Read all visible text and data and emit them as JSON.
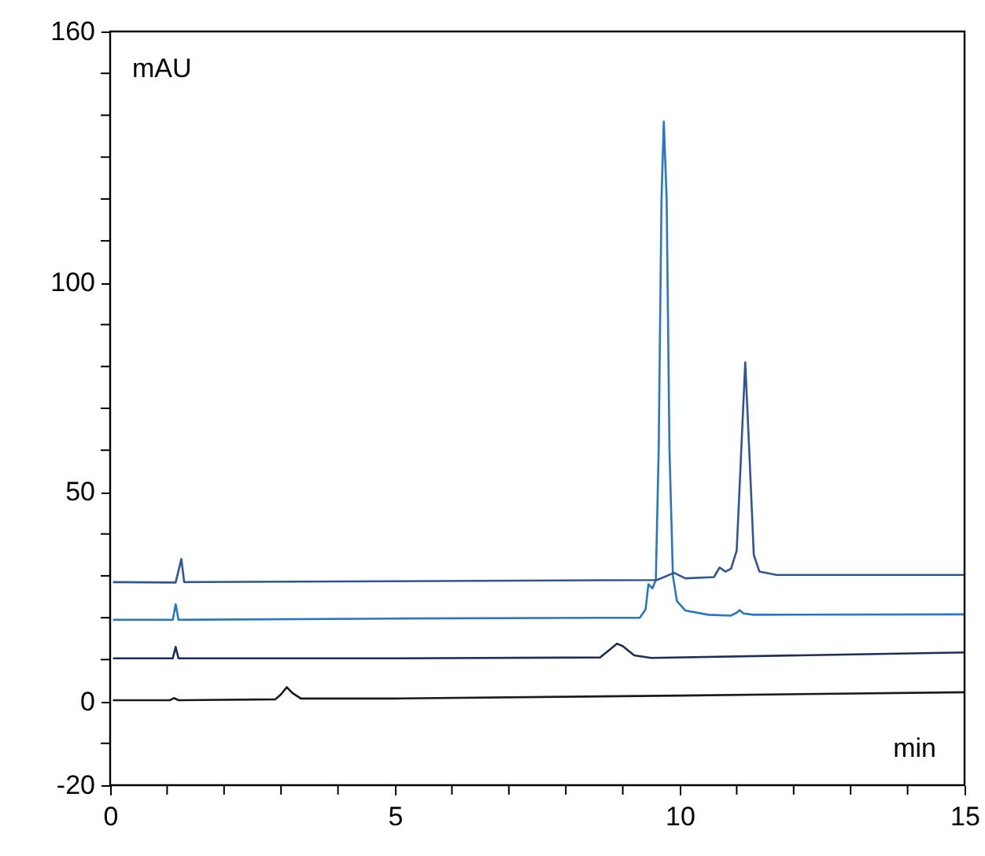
{
  "chart_data": {
    "type": "line",
    "xlabel": "min",
    "ylabel": "mAU",
    "xlim": [
      0,
      15
    ],
    "ylim": [
      -20,
      160
    ],
    "xticks": [
      0,
      {
        "value": 1,
        "label": null
      },
      {
        "value": 2,
        "label": null
      },
      {
        "value": 3,
        "label": null
      },
      {
        "value": 4,
        "label": null
      },
      5,
      {
        "value": 6,
        "label": null
      },
      {
        "value": 7,
        "label": null
      },
      {
        "value": 8,
        "label": null
      },
      {
        "value": 9,
        "label": null
      },
      10,
      {
        "value": 11,
        "label": null
      },
      {
        "value": 12,
        "label": null
      },
      {
        "value": 13,
        "label": null
      },
      {
        "value": 14,
        "label": null
      },
      15
    ],
    "yticks": [
      -20,
      {
        "value": -10,
        "label": null
      },
      0,
      {
        "value": 10,
        "label": null
      },
      {
        "value": 20,
        "label": null
      },
      {
        "value": 30,
        "label": null
      },
      {
        "value": 40,
        "label": null
      },
      50,
      {
        "value": 60,
        "label": null
      },
      {
        "value": 70,
        "label": null
      },
      {
        "value": 80,
        "label": null
      },
      {
        "value": 90,
        "label": null
      },
      100,
      {
        "value": 110,
        "label": null
      },
      {
        "value": 120,
        "label": null
      },
      {
        "value": 130,
        "label": null
      },
      {
        "value": 140,
        "label": null
      },
      {
        "value": 150,
        "label": null
      },
      160
    ],
    "grid": false,
    "marker": "none",
    "line_style": "solid",
    "series": [
      {
        "color": "#1a1a1a",
        "x": [
          0.05,
          1.05,
          1.12,
          1.2,
          2.9,
          3.0,
          3.1,
          3.2,
          3.35,
          5,
          10,
          15
        ],
        "values": [
          0.3,
          0.3,
          0.8,
          0.3,
          0.5,
          1.7,
          3.4,
          2,
          0.7,
          0.7,
          1.4,
          2.2
        ]
      },
      {
        "color": "#1f2d5a",
        "x": [
          0.05,
          1.1,
          1.15,
          1.2,
          5,
          8.6,
          8.8,
          8.9,
          9.0,
          9.2,
          9.5,
          15
        ],
        "values": [
          10.3,
          10.3,
          13,
          10.3,
          10.3,
          10.5,
          12.7,
          13.8,
          13.2,
          11,
          10.4,
          11.7
        ]
      },
      {
        "color": "#2778c4",
        "x": [
          0.05,
          1.1,
          1.15,
          1.2,
          5,
          9.3,
          9.4,
          9.45,
          9.52,
          9.58,
          9.63,
          9.68,
          9.72,
          9.77,
          9.82,
          9.88,
          9.95,
          10.1,
          10.5,
          10.9,
          11.0,
          11.05,
          11.12,
          11.3,
          15
        ],
        "values": [
          19.5,
          19.5,
          23.2,
          19.5,
          19.8,
          20,
          22,
          28,
          27,
          29,
          60,
          120,
          138.5,
          120,
          60,
          30,
          24,
          21.7,
          20.7,
          20.5,
          21.2,
          21.8,
          21,
          20.7,
          20.8
        ]
      },
      {
        "color": "#2f5596",
        "x": [
          0.05,
          1.15,
          1.25,
          1.3,
          5,
          9.6,
          9.9,
          10.1,
          10.6,
          10.7,
          10.8,
          10.9,
          11.0,
          11.08,
          11.15,
          11.22,
          11.3,
          11.4,
          11.7,
          15
        ],
        "values": [
          28.5,
          28.4,
          34,
          28.5,
          28.7,
          29,
          30.7,
          29.4,
          29.7,
          32,
          31,
          31.7,
          36,
          60,
          81,
          60,
          35,
          31,
          30.2,
          30.2
        ]
      }
    ]
  }
}
